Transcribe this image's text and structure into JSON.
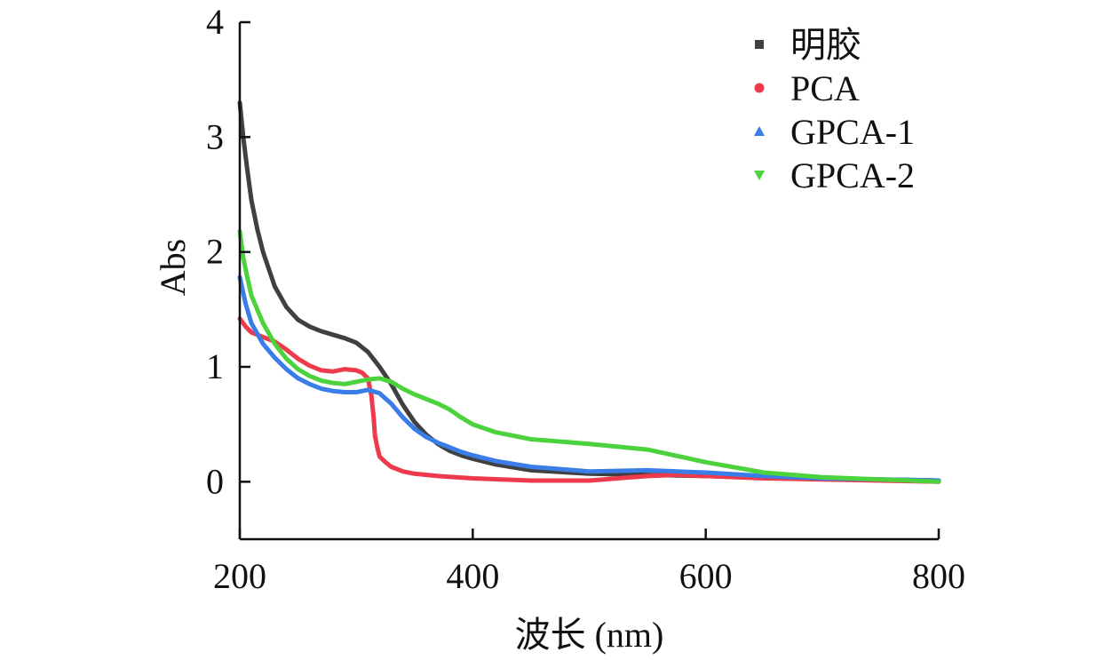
{
  "chart_data": {
    "type": "line",
    "xlabel": "波长 (nm)",
    "ylabel": "Abs",
    "xlim": [
      200,
      800
    ],
    "ylim": [
      -0.5,
      4
    ],
    "xticks": [
      200,
      400,
      600,
      800
    ],
    "yticks": [
      0,
      1,
      2,
      3,
      4
    ],
    "grid": false,
    "legend_position": "top-right",
    "series": [
      {
        "name": "明胶",
        "color": "#404040",
        "marker": "square",
        "x": [
          200,
          203,
          206,
          210,
          215,
          220,
          230,
          240,
          250,
          260,
          270,
          280,
          290,
          300,
          310,
          320,
          330,
          340,
          350,
          360,
          370,
          380,
          390,
          400,
          420,
          450,
          500,
          550,
          600,
          650,
          700,
          750,
          800
        ],
        "y": [
          3.3,
          3.0,
          2.75,
          2.45,
          2.2,
          2.0,
          1.7,
          1.52,
          1.41,
          1.35,
          1.31,
          1.28,
          1.25,
          1.21,
          1.13,
          1.0,
          0.85,
          0.67,
          0.52,
          0.41,
          0.33,
          0.27,
          0.23,
          0.2,
          0.15,
          0.1,
          0.07,
          0.06,
          0.05,
          0.04,
          0.03,
          0.02,
          0.01
        ]
      },
      {
        "name": "PCA",
        "color": "#ee3a4a",
        "marker": "circle",
        "x": [
          200,
          205,
          210,
          220,
          230,
          240,
          250,
          260,
          270,
          280,
          290,
          300,
          305,
          310,
          313,
          315,
          316,
          318,
          320,
          325,
          330,
          340,
          350,
          370,
          400,
          450,
          500,
          550,
          575,
          600,
          650,
          700,
          750,
          800
        ],
        "y": [
          1.42,
          1.35,
          1.3,
          1.26,
          1.22,
          1.15,
          1.07,
          1.01,
          0.97,
          0.96,
          0.98,
          0.97,
          0.95,
          0.9,
          0.75,
          0.55,
          0.4,
          0.3,
          0.22,
          0.17,
          0.13,
          0.09,
          0.07,
          0.05,
          0.03,
          0.01,
          0.01,
          0.05,
          0.06,
          0.05,
          0.03,
          0.02,
          0.01,
          0.0
        ]
      },
      {
        "name": "GPCA-1",
        "color": "#3a7de8",
        "marker": "triangle-up",
        "x": [
          200,
          205,
          210,
          220,
          230,
          240,
          250,
          260,
          270,
          280,
          290,
          300,
          310,
          320,
          330,
          340,
          350,
          360,
          370,
          380,
          390,
          400,
          420,
          450,
          500,
          550,
          600,
          650,
          700,
          750,
          800
        ],
        "y": [
          1.78,
          1.55,
          1.38,
          1.2,
          1.08,
          0.98,
          0.9,
          0.85,
          0.81,
          0.79,
          0.78,
          0.78,
          0.8,
          0.77,
          0.68,
          0.56,
          0.46,
          0.39,
          0.34,
          0.3,
          0.26,
          0.23,
          0.18,
          0.13,
          0.09,
          0.1,
          0.08,
          0.05,
          0.03,
          0.02,
          0.01
        ]
      },
      {
        "name": "GPCA-2",
        "color": "#4cd23c",
        "marker": "triangle-down",
        "x": [
          200,
          203,
          206,
          210,
          220,
          230,
          240,
          250,
          260,
          270,
          280,
          290,
          300,
          310,
          320,
          330,
          340,
          350,
          360,
          370,
          380,
          390,
          400,
          420,
          450,
          500,
          550,
          600,
          650,
          700,
          750,
          800
        ],
        "y": [
          2.18,
          1.95,
          1.8,
          1.62,
          1.38,
          1.2,
          1.07,
          0.98,
          0.92,
          0.88,
          0.86,
          0.85,
          0.87,
          0.89,
          0.9,
          0.87,
          0.81,
          0.76,
          0.72,
          0.68,
          0.63,
          0.56,
          0.5,
          0.43,
          0.37,
          0.33,
          0.28,
          0.17,
          0.08,
          0.04,
          0.02,
          0.0
        ]
      }
    ]
  }
}
